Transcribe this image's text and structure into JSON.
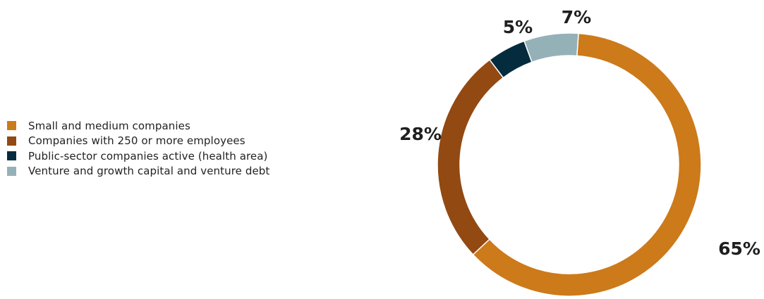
{
  "chart_data": {
    "type": "pie",
    "donut": true,
    "legend_position": "left",
    "series": [
      {
        "name": "Small and medium companies",
        "value": 65,
        "label": "65%",
        "color": "#cc7a1a"
      },
      {
        "name": "Companies with 250 or more employees",
        "value": 28,
        "label": "28%",
        "color": "#924912"
      },
      {
        "name": "Public-sector companies active (health area)",
        "value": 5,
        "label": "5%",
        "color": "#052c3e"
      },
      {
        "name": "Venture and growth capital and venture debt",
        "value": 7,
        "label": "7%",
        "color": "#95b1b8"
      }
    ]
  }
}
